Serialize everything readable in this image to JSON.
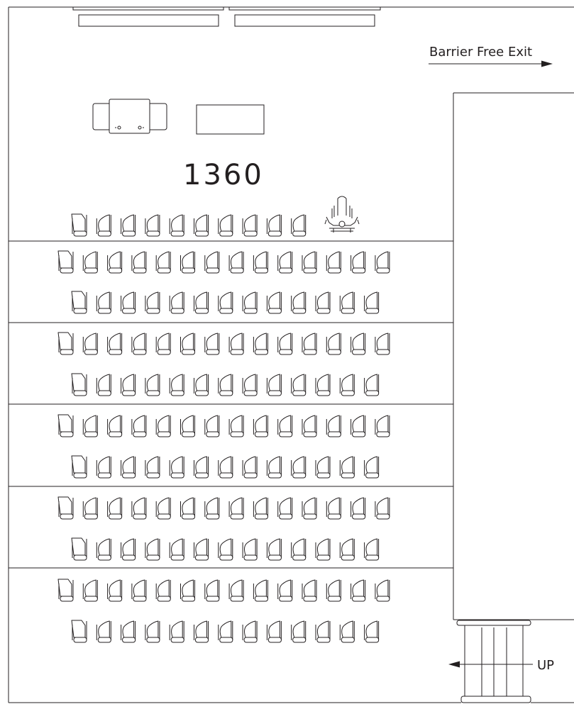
{
  "room": {
    "number": "1360"
  },
  "labels": {
    "exit": "Barrier Free Exit",
    "stairs": "UP"
  },
  "seating": {
    "tiers": 5,
    "front_row": {
      "seats": 10,
      "wheelchair_spaces": 1
    },
    "upper_row_seats": 14,
    "lower_row_seats": 13,
    "rows": [
      {
        "row": 1,
        "seats": 10,
        "wheelchair_spaces": 1
      },
      {
        "row": 2,
        "seats": 14
      },
      {
        "row": 3,
        "seats": 13
      },
      {
        "row": 4,
        "seats": 14
      },
      {
        "row": 5,
        "seats": 13
      },
      {
        "row": 6,
        "seats": 14
      },
      {
        "row": 7,
        "seats": 13
      },
      {
        "row": 8,
        "seats": 14
      },
      {
        "row": 9,
        "seats": 13
      },
      {
        "row": 10,
        "seats": 14
      },
      {
        "row": 11,
        "seats": 13
      }
    ]
  },
  "icons": {
    "exit_arrow": "right-arrow-icon",
    "stairs_arrow": "left-arrow-icon",
    "wheelchair": "wheelchair-icon",
    "seat": "seat-icon",
    "projector": "projector-icon"
  }
}
